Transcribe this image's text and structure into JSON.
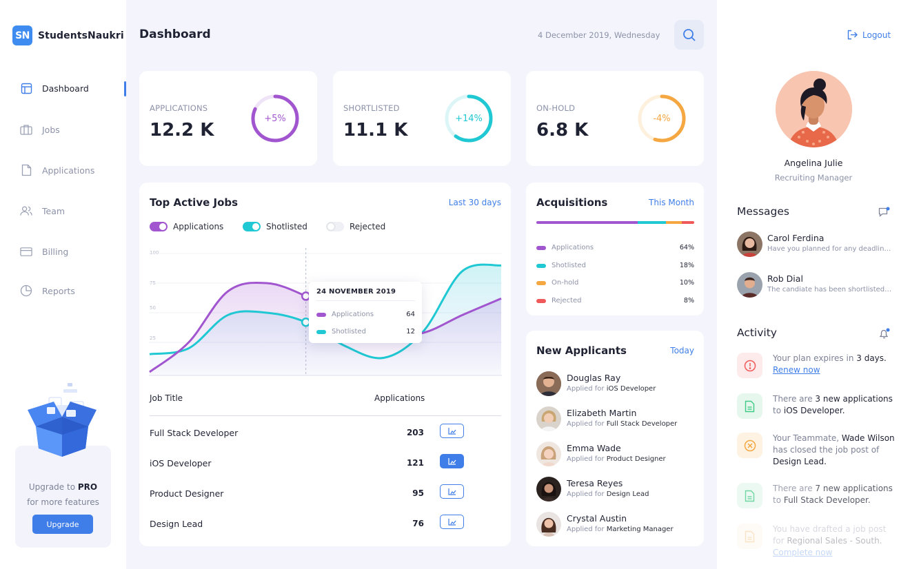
{
  "brand": {
    "logo_initials": "SN",
    "name": "StudentsNaukri"
  },
  "sidebar": {
    "items": [
      {
        "label": "Dashboard",
        "icon": "layout-icon",
        "active": true
      },
      {
        "label": "Jobs",
        "icon": "briefcase-icon",
        "active": false
      },
      {
        "label": "Applications",
        "icon": "document-icon",
        "active": false
      },
      {
        "label": "Team",
        "icon": "users-icon",
        "active": false
      },
      {
        "label": "Billing",
        "icon": "credit-card-icon",
        "active": false
      },
      {
        "label": "Reports",
        "icon": "pie-chart-icon",
        "active": false
      }
    ],
    "upgrade": {
      "text_prefix": "Upgrade to",
      "text_strong": "PRO",
      "text_line2": "for more features",
      "button": "Upgrade"
    }
  },
  "header": {
    "title": "Dashboard",
    "date": "4 December 2019, Wednesday"
  },
  "stats": [
    {
      "label": "APPLICATIONS",
      "value": "12.2 K",
      "change": "+5%",
      "progress": 0.82,
      "color": "#a155cf"
    },
    {
      "label": "SHORTLISTED",
      "value": "11.1 K",
      "change": "+14%",
      "progress": 0.6,
      "color": "#1fc8d2"
    },
    {
      "label": "ON-HOLD",
      "value": "6.8 K",
      "change": "-4%",
      "progress": 0.55,
      "color": "#f5a742"
    }
  ],
  "top_jobs": {
    "title": "Top Active Jobs",
    "period": "Last 30 days",
    "toggles": [
      {
        "label": "Applications",
        "on": true,
        "color": "#a155cf"
      },
      {
        "label": "Shotlisted",
        "on": true,
        "color": "#1fc8d2"
      },
      {
        "label": "Rejected",
        "on": false,
        "color": "#eef0f5"
      }
    ],
    "yticks": [
      "100",
      "75",
      "50",
      "25"
    ],
    "tooltip": {
      "date": "24 NOVEMBER 2019",
      "rows": [
        {
          "label": "Applications",
          "value": "64"
        },
        {
          "label": "Shotlisted",
          "value": "12"
        }
      ]
    },
    "table": {
      "col_title": "Job Title",
      "col_apps": "Applications",
      "rows": [
        {
          "title": "Full Stack Developer",
          "applications": "203",
          "active": false
        },
        {
          "title": "iOS Developer",
          "applications": "121",
          "active": true
        },
        {
          "title": "Product Designer",
          "applications": "95",
          "active": false
        },
        {
          "title": "Design Lead",
          "applications": "76",
          "active": false
        }
      ]
    }
  },
  "chart_data": {
    "type": "area",
    "ylim": [
      0,
      100
    ],
    "yticks": [
      25,
      50,
      75,
      100
    ],
    "series": [
      {
        "name": "Applications",
        "color": "#a155cf",
        "values": [
          0,
          25,
          68,
          75,
          64,
          45,
          32,
          33,
          48,
          62
        ]
      },
      {
        "name": "Shotlisted",
        "color": "#1fc8d2",
        "values": [
          15,
          20,
          48,
          50,
          42,
          22,
          12,
          34,
          85,
          90
        ]
      }
    ],
    "highlight": {
      "label": "24 NOVEMBER 2019",
      "applications": 64,
      "shotlisted": 12
    }
  },
  "acquisitions": {
    "title": "Acquisitions",
    "period": "This Month",
    "items": [
      {
        "label": "Applications",
        "value": "64%",
        "color": "#a155cf",
        "pct": 64
      },
      {
        "label": "Shotlisted",
        "value": "18%",
        "color": "#1fc8d2",
        "pct": 18
      },
      {
        "label": "On-hold",
        "value": "10%",
        "color": "#f5a742",
        "pct": 10
      },
      {
        "label": "Rejected",
        "value": "8%",
        "color": "#f0595a",
        "pct": 8
      }
    ]
  },
  "new_applicants": {
    "title": "New Applicants",
    "period": "Today",
    "applied_for": "Applied for",
    "items": [
      {
        "name": "Douglas Ray",
        "role": "iOS Developer"
      },
      {
        "name": "Elizabeth Martin",
        "role": "Full Stack Developer"
      },
      {
        "name": "Emma Wade",
        "role": "Product Designer"
      },
      {
        "name": "Teresa Reyes",
        "role": "Design Lead"
      },
      {
        "name": "Crystal Austin",
        "role": "Marketing Manager"
      }
    ]
  },
  "profile": {
    "logout": "Logout",
    "name": "Angelina Julie",
    "role": "Recruiting Manager"
  },
  "messages": {
    "title": "Messages",
    "items": [
      {
        "name": "Carol Ferdina",
        "text": "Have you planned for any deadline for this?"
      },
      {
        "name": "Rob Dial",
        "text": "The candiate has been shortlisted for the next round"
      }
    ]
  },
  "activity": {
    "title": "Activity",
    "items": [
      {
        "icon": "alert-icon",
        "p1": "Your plan expires in ",
        "b1": "3 days.",
        "link": "Renew now"
      },
      {
        "icon": "file-icon",
        "p1": "There are ",
        "b1": "3 new applications",
        "p2": " to ",
        "b2": "iOS Developer."
      },
      {
        "icon": "close-circle-icon",
        "p1": "Your Teammate, ",
        "b1": "Wade Wilson",
        "p2": " has closed the job post of ",
        "b2": "Design Lead."
      },
      {
        "icon": "file-icon",
        "p1": "There are ",
        "b1": "7 new applications",
        "p2": " to ",
        "b2": "Full Stack Developer."
      },
      {
        "icon": "file-icon",
        "p1": "You have drafted a job post for ",
        "b1": "Regional Sales - South.",
        "link": "Complete now"
      }
    ]
  }
}
